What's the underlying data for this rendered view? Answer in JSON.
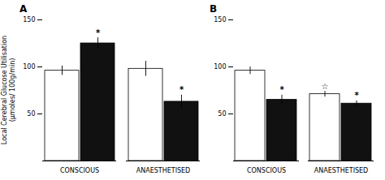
{
  "chart_data": [
    {
      "type": "bar",
      "title": "A",
      "y_label": "Local Cerebral Glucose Utilisation\n(μmoles/ 100g/min)",
      "categories": [
        "CONSCIOUS",
        "ANAESTHETISED"
      ],
      "series": [
        {
          "color": "#ffffff",
          "values": [
            96,
            98
          ],
          "errors": [
            5,
            8
          ],
          "significance": [
            null,
            null
          ]
        },
        {
          "color": "#111111",
          "values": [
            125,
            63
          ],
          "errors": [
            6,
            7
          ],
          "significance": [
            "*",
            "*"
          ]
        }
      ],
      "ylim": [
        0,
        150
      ],
      "yticks": [
        50,
        100,
        150
      ]
    },
    {
      "type": "bar",
      "title": "B",
      "categories": [
        "CONSCIOUS",
        "ANAESTHETISED"
      ],
      "series": [
        {
          "color": "#ffffff",
          "values": [
            96,
            71
          ],
          "errors": [
            4,
            3
          ],
          "significance": [
            null,
            "☆"
          ]
        },
        {
          "color": "#111111",
          "values": [
            65,
            61
          ],
          "errors": [
            5,
            3
          ],
          "significance": [
            "*",
            "*"
          ]
        }
      ],
      "ylim": [
        0,
        150
      ],
      "yticks": [
        50,
        100,
        150
      ]
    }
  ]
}
